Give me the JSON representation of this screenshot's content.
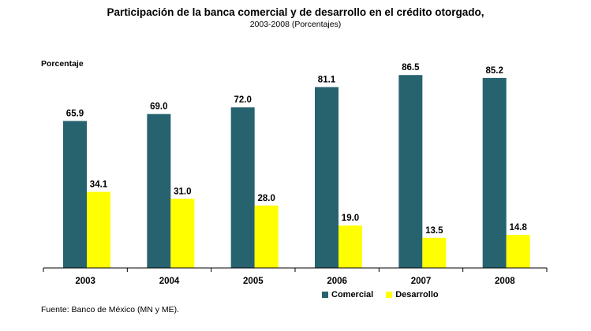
{
  "chart_data": {
    "type": "bar",
    "title": "Participación de la banca comercial y de desarrollo en el crédito otorgado,",
    "subtitle": "2003-2008  (Porcentajes)",
    "ylabel": "Porcentaje",
    "xlabel": "",
    "categories": [
      "2003",
      "2004",
      "2005",
      "2006",
      "2007",
      "2008"
    ],
    "series": [
      {
        "name": "Comercial",
        "color": "#27636f",
        "values": [
          65.9,
          69.0,
          72.0,
          81.1,
          86.5,
          85.2
        ],
        "labels": [
          "65.9",
          "69.0",
          "72.0",
          "81.1",
          "86.5",
          "85.2"
        ]
      },
      {
        "name": "Desarrollo",
        "color": "#ffff00",
        "values": [
          34.1,
          31.0,
          28.0,
          19.0,
          13.5,
          14.8
        ],
        "labels": [
          "34.1",
          "31.0",
          "28.0",
          "19.0",
          "13.5",
          "14.8"
        ]
      }
    ],
    "ylim": [
      0,
      100
    ],
    "grid": false,
    "legend": "bottom-right",
    "source": "Fuente: Banco de México (MN y ME)."
  }
}
